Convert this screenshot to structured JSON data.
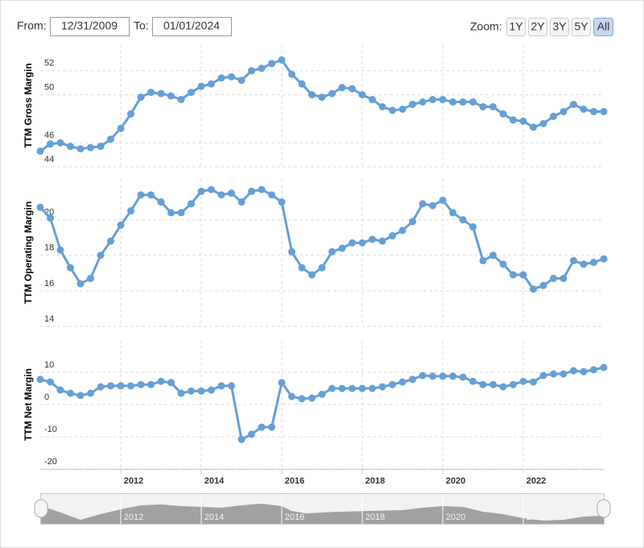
{
  "controls": {
    "from_label": "From:",
    "from_date": "12/31/2009",
    "to_label": "To:",
    "to_date": "01/01/2024",
    "zoom_label": "Zoom:",
    "zoom_buttons": [
      "1Y",
      "2Y",
      "3Y",
      "5Y",
      "All"
    ]
  },
  "chart_data": [
    {
      "type": "line",
      "ylabel": "TTM Gross Margin",
      "color": "#659fd6",
      "grid": true,
      "xlim": [
        2010,
        2024
      ],
      "xticks": [
        2012,
        2014,
        2016,
        2018,
        2020,
        2022
      ],
      "ylim": [
        44,
        54.2
      ],
      "yticks": [
        44,
        46,
        50,
        52
      ],
      "x": [
        2010,
        2010.25,
        2010.5,
        2010.75,
        2011,
        2011.25,
        2011.5,
        2011.75,
        2012,
        2012.25,
        2012.5,
        2012.75,
        2013,
        2013.25,
        2013.5,
        2013.75,
        2014,
        2014.25,
        2014.5,
        2014.75,
        2015,
        2015.25,
        2015.5,
        2015.75,
        2016,
        2016.25,
        2016.5,
        2016.75,
        2017,
        2017.25,
        2017.5,
        2017.75,
        2018,
        2018.25,
        2018.5,
        2018.75,
        2019,
        2019.25,
        2019.5,
        2019.75,
        2020,
        2020.25,
        2020.5,
        2020.75,
        2021,
        2021.25,
        2021.5,
        2021.75,
        2022,
        2022.25,
        2022.5,
        2022.75,
        2023,
        2023.25,
        2023.5,
        2023.75,
        2024
      ],
      "values": [
        45.3,
        45.9,
        46.0,
        45.7,
        45.5,
        45.6,
        45.7,
        46.3,
        47.2,
        48.4,
        49.8,
        50.2,
        50.1,
        49.9,
        49.6,
        50.2,
        50.7,
        50.9,
        51.4,
        51.5,
        51.2,
        52.0,
        52.2,
        52.6,
        52.9,
        51.7,
        50.9,
        50.0,
        49.8,
        50.1,
        50.6,
        50.5,
        50.0,
        49.6,
        49.0,
        48.7,
        48.8,
        49.2,
        49.4,
        49.6,
        49.6,
        49.4,
        49.4,
        49.4,
        49.0,
        49.0,
        48.4,
        47.9,
        47.8,
        47.3,
        47.6,
        48.2,
        48.6,
        49.2,
        48.8,
        48.6,
        48.6
      ]
    },
    {
      "type": "line",
      "ylabel": "TTM Operating Margin",
      "color": "#659fd6",
      "grid": true,
      "xlim": [
        2010,
        2024
      ],
      "xticks": [
        2012,
        2014,
        2016,
        2018,
        2020,
        2022
      ],
      "ylim": [
        14,
        22.3
      ],
      "yticks": [
        14,
        16,
        18,
        20
      ],
      "x": [
        2010,
        2010.25,
        2010.5,
        2010.75,
        2011,
        2011.25,
        2011.5,
        2011.75,
        2012,
        2012.25,
        2012.5,
        2012.75,
        2013,
        2013.25,
        2013.5,
        2013.75,
        2014,
        2014.25,
        2014.5,
        2014.75,
        2015,
        2015.25,
        2015.5,
        2015.75,
        2016,
        2016.25,
        2016.5,
        2016.75,
        2017,
        2017.25,
        2017.5,
        2017.75,
        2018,
        2018.25,
        2018.5,
        2018.75,
        2019,
        2019.25,
        2019.5,
        2019.75,
        2020,
        2020.25,
        2020.5,
        2020.75,
        2021,
        2021.25,
        2021.5,
        2021.75,
        2022,
        2022.25,
        2022.5,
        2022.75,
        2023,
        2023.25,
        2023.5,
        2023.75,
        2024
      ],
      "values": [
        20.7,
        20.1,
        18.3,
        17.3,
        16.4,
        16.7,
        18.0,
        18.8,
        19.7,
        20.5,
        21.4,
        21.4,
        21.0,
        20.4,
        20.4,
        20.9,
        21.6,
        21.7,
        21.4,
        21.5,
        21.0,
        21.6,
        21.7,
        21.4,
        21.0,
        18.2,
        17.3,
        16.9,
        17.3,
        18.2,
        18.4,
        18.7,
        18.7,
        18.9,
        18.8,
        19.1,
        19.4,
        19.9,
        20.9,
        20.8,
        21.1,
        20.4,
        20.0,
        19.6,
        17.7,
        18.0,
        17.5,
        16.9,
        16.9,
        16.1,
        16.3,
        16.7,
        16.7,
        17.7,
        17.5,
        17.6,
        17.8
      ]
    },
    {
      "type": "line",
      "ylabel": "TTM Net Margin",
      "color": "#659fd6",
      "grid": true,
      "xlim": [
        2010,
        2024
      ],
      "xticks": [
        2012,
        2014,
        2016,
        2018,
        2020,
        2022
      ],
      "ylim": [
        -20,
        20
      ],
      "yticks": [
        -20,
        -10,
        0,
        10
      ],
      "x": [
        2010,
        2010.25,
        2010.5,
        2010.75,
        2011,
        2011.25,
        2011.5,
        2011.75,
        2012,
        2012.25,
        2012.5,
        2012.75,
        2013,
        2013.25,
        2013.5,
        2013.75,
        2014,
        2014.25,
        2014.5,
        2014.75,
        2015,
        2015.25,
        2015.5,
        2015.75,
        2016,
        2016.25,
        2016.5,
        2016.75,
        2017,
        2017.25,
        2017.5,
        2017.75,
        2018,
        2018.25,
        2018.5,
        2018.75,
        2019,
        2019.25,
        2019.5,
        2019.75,
        2020,
        2020.25,
        2020.5,
        2020.75,
        2021,
        2021.25,
        2021.5,
        2021.75,
        2022,
        2022.25,
        2022.5,
        2022.75,
        2023,
        2023.25,
        2023.5,
        2023.75,
        2024
      ],
      "values": [
        7.8,
        7.0,
        4.5,
        3.5,
        2.8,
        3.5,
        5.5,
        5.8,
        5.8,
        5.8,
        6.2,
        6.2,
        7.2,
        6.8,
        3.5,
        4.2,
        4.2,
        4.5,
        5.8,
        5.8,
        -10.8,
        -9.2,
        -7.0,
        -7.0,
        6.8,
        2.5,
        1.8,
        2.0,
        3.2,
        5.0,
        5.0,
        5.0,
        5.0,
        5.0,
        5.5,
        6.2,
        7.0,
        7.8,
        9.0,
        8.8,
        8.8,
        8.8,
        8.5,
        7.2,
        6.2,
        6.2,
        5.5,
        6.2,
        7.2,
        7.0,
        9.0,
        9.5,
        9.5,
        10.5,
        10.2,
        10.8,
        11.5
      ]
    }
  ]
}
